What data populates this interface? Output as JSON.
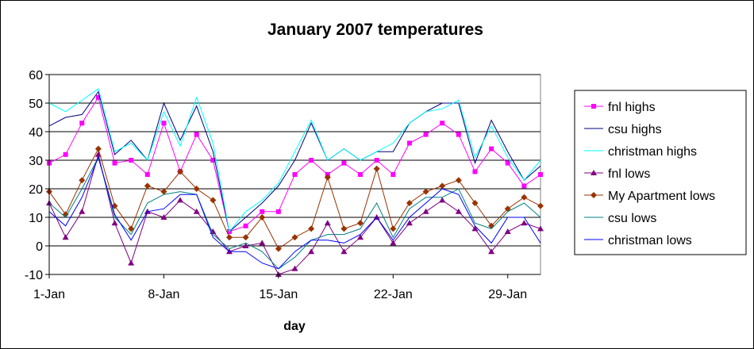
{
  "chart_data": {
    "type": "line",
    "title": "January 2007 temperatures",
    "xlabel": "day",
    "ylabel": "",
    "ylim": [
      -10,
      60
    ],
    "yticks": [
      -10,
      0,
      10,
      20,
      30,
      40,
      50,
      60
    ],
    "xlim": [
      1,
      31
    ],
    "xticks": [
      {
        "day": 1,
        "label": "1-Jan"
      },
      {
        "day": 8,
        "label": "8-Jan"
      },
      {
        "day": 15,
        "label": "15-Jan"
      },
      {
        "day": 22,
        "label": "22-Jan"
      },
      {
        "day": 29,
        "label": "29-Jan"
      }
    ],
    "grid": "horizontal",
    "legend_position": "right",
    "days": [
      1,
      2,
      3,
      4,
      5,
      6,
      7,
      8,
      9,
      10,
      11,
      12,
      13,
      14,
      15,
      16,
      17,
      18,
      19,
      20,
      21,
      22,
      23,
      24,
      25,
      26,
      27,
      28,
      29,
      30,
      31
    ],
    "series": [
      {
        "name": "fnl highs",
        "color": "#ff00ff",
        "marker": "square",
        "values": [
          29,
          32,
          43,
          52,
          29,
          30,
          25,
          43,
          26,
          39,
          30,
          5,
          7,
          12,
          12,
          25,
          30,
          25,
          29,
          25,
          30,
          25,
          36,
          39,
          43,
          39,
          26,
          34,
          29,
          21,
          25
        ]
      },
      {
        "name": "csu highs",
        "color": "#000080",
        "marker": "none",
        "values": [
          42,
          45,
          46,
          54,
          32,
          37,
          30,
          50,
          37,
          49,
          33,
          5,
          10,
          15,
          21,
          30,
          43,
          30,
          34,
          30,
          33,
          33,
          43,
          47,
          50,
          50,
          29,
          44,
          33,
          23,
          28
        ]
      },
      {
        "name": "christman highs",
        "color": "#00ffff",
        "marker": "none",
        "values": [
          50,
          47,
          51,
          55,
          33,
          36,
          30,
          47,
          35,
          52,
          36,
          5,
          12,
          16,
          22,
          33,
          44,
          30,
          34,
          30,
          33,
          36,
          43,
          47,
          48,
          51,
          31,
          42,
          31,
          23,
          30
        ]
      },
      {
        "name": "fnl lows",
        "color": "#800080",
        "marker": "triangle",
        "values": [
          15,
          3,
          12,
          32,
          8,
          -6,
          12,
          10,
          16,
          12,
          5,
          -2,
          0,
          1,
          -10,
          -8,
          -2,
          8,
          -2,
          3,
          10,
          1,
          8,
          12,
          16,
          12,
          6,
          -2,
          5,
          8,
          6
        ]
      },
      {
        "name": "My Apartment lows",
        "color": "#993300",
        "marker": "diamond",
        "values": [
          19,
          11,
          23,
          34,
          14,
          6,
          21,
          19,
          26,
          20,
          16,
          3,
          3,
          10,
          -1,
          3,
          6,
          24,
          6,
          8,
          27,
          6,
          15,
          19,
          21,
          23,
          15,
          7,
          13,
          17,
          14
        ]
      },
      {
        "name": "csu lows",
        "color": "#008080",
        "marker": "none",
        "values": [
          15,
          10,
          20,
          31,
          10,
          4,
          15,
          18,
          19,
          18,
          4,
          -1,
          1,
          -2,
          -8,
          -4,
          2,
          4,
          4,
          6,
          15,
          3,
          13,
          17,
          17,
          20,
          8,
          6,
          12,
          15,
          10
        ]
      },
      {
        "name": "christman lows",
        "color": "#0000ff",
        "marker": "none",
        "values": [
          12,
          7,
          17,
          31,
          11,
          2,
          12,
          13,
          18,
          18,
          3,
          -2,
          -2,
          -6,
          -8,
          -2,
          2,
          2,
          1,
          4,
          10,
          2,
          10,
          15,
          20,
          18,
          7,
          1,
          10,
          10,
          1
        ]
      }
    ]
  }
}
